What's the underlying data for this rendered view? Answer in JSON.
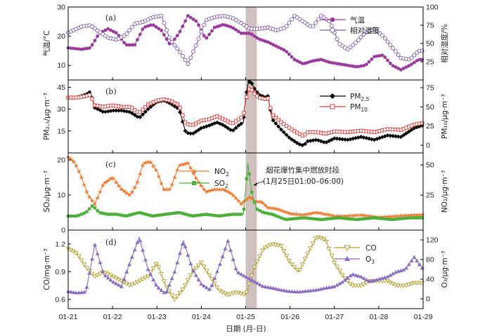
{
  "chart_data": [
    {
      "panel": "(a)",
      "type": "line",
      "x_day_range": [
        21,
        29
      ],
      "left_axis": {
        "label": "气温/°C",
        "range": [
          5,
          30
        ],
        "ticks": [
          "10",
          "20",
          "30"
        ]
      },
      "right_axis": {
        "label": "相对湿度/%",
        "range": [
          0,
          100
        ],
        "ticks": [
          "25",
          "50",
          "75",
          "100"
        ]
      },
      "series": [
        {
          "name": "气温",
          "axis": "left",
          "color": "#9b3a9b",
          "marker": "filled-circle",
          "x": [
            21.0,
            21.3,
            21.5,
            21.7,
            21.9,
            22.1,
            22.3,
            22.5,
            22.7,
            22.9,
            23.1,
            23.3,
            23.5,
            23.7,
            23.9,
            24.1,
            24.3,
            24.5,
            24.7,
            24.9,
            25.1,
            25.3,
            25.5,
            25.7,
            25.9,
            26.1,
            26.3,
            26.5,
            26.7,
            26.9,
            27.1,
            27.3,
            27.5,
            27.7,
            27.9,
            28.1,
            28.3,
            28.5,
            28.7,
            28.9,
            29.0
          ],
          "y": [
            16,
            15.5,
            16,
            21,
            22.5,
            21,
            17,
            17,
            23,
            24,
            22,
            17,
            21,
            27,
            25,
            19,
            23,
            24,
            23,
            21,
            21,
            19,
            18,
            16.5,
            15,
            12,
            10.5,
            11.5,
            12,
            11,
            10.5,
            10,
            9.5,
            10,
            13,
            13.5,
            10,
            8.5,
            10,
            12,
            12
          ]
        },
        {
          "name": "相对湿度",
          "axis": "right",
          "color": "#7e5aa8",
          "marker": "open-circle",
          "x": [
            21.0,
            21.3,
            21.5,
            21.7,
            21.9,
            22.1,
            22.3,
            22.5,
            22.7,
            22.9,
            23.1,
            23.3,
            23.5,
            23.7,
            23.9,
            24.1,
            24.3,
            24.5,
            24.7,
            24.9,
            25.1,
            25.3,
            25.5,
            25.7,
            25.9,
            26.1,
            26.3,
            26.5,
            26.7,
            26.9,
            27.1,
            27.3,
            27.5,
            27.7,
            27.9,
            28.1,
            28.3,
            28.5,
            28.7,
            28.9,
            29.0
          ],
          "y": [
            65,
            73,
            75,
            66,
            58,
            55,
            62,
            77,
            80,
            86,
            88,
            55,
            40,
            22,
            50,
            82,
            86,
            88,
            85,
            78,
            70,
            70,
            72,
            68,
            72,
            88,
            80,
            72,
            88,
            80,
            50,
            42,
            52,
            65,
            70,
            60,
            45,
            30,
            28,
            40,
            40
          ]
        }
      ]
    },
    {
      "panel": "(b)",
      "type": "line",
      "x_day_range": [
        21,
        29
      ],
      "left_axis": {
        "label": "PM₂.₅/μg·m⁻³",
        "range": [
          0,
          50
        ],
        "ticks": [
          "15",
          "30",
          "45"
        ]
      },
      "right_axis": {
        "label": "PM₁₀/μg·m⁻³",
        "range": [
          -10,
          85
        ],
        "ticks": [
          "0",
          "25",
          "50",
          "75"
        ]
      },
      "series": [
        {
          "name": "PM2.5",
          "axis": "left",
          "color": "#000000",
          "marker": "filled-diamond",
          "x": [
            21.0,
            21.2,
            21.3,
            21.4,
            21.5,
            21.6,
            21.8,
            22.0,
            22.2,
            22.4,
            22.6,
            22.8,
            23.0,
            23.15,
            23.3,
            23.5,
            23.65,
            23.8,
            24.0,
            24.2,
            24.35,
            24.5,
            24.7,
            24.85,
            24.95,
            25.0,
            25.05,
            25.1,
            25.2,
            25.3,
            25.45,
            25.5,
            25.6,
            25.8,
            26.0,
            26.2,
            26.3,
            26.4,
            26.6,
            26.8,
            27.0,
            27.3,
            27.6,
            27.9,
            28.2,
            28.5,
            28.8,
            29.0
          ],
          "y": [
            38,
            38,
            39,
            40,
            42,
            31,
            28,
            29,
            29,
            28,
            24,
            30,
            35,
            36,
            34,
            30,
            14,
            13,
            17,
            19,
            21,
            19,
            15,
            19,
            21,
            38,
            47,
            50,
            44,
            40,
            38,
            39,
            23,
            16,
            10,
            6,
            5,
            8,
            9,
            7,
            10,
            9,
            11,
            9,
            12,
            11,
            17,
            19
          ]
        },
        {
          "name": "PM10",
          "axis": "right",
          "color": "#e03c3c",
          "marker": "open-square",
          "x": [
            21.0,
            21.2,
            21.3,
            21.4,
            21.5,
            21.6,
            21.8,
            22.0,
            22.2,
            22.4,
            22.6,
            22.8,
            23.0,
            23.15,
            23.3,
            23.5,
            23.65,
            23.8,
            24.0,
            24.2,
            24.35,
            24.5,
            24.7,
            24.85,
            24.95,
            25.0,
            25.05,
            25.1,
            25.2,
            25.3,
            25.45,
            25.5,
            25.6,
            25.8,
            26.0,
            26.2,
            26.3,
            26.4,
            26.6,
            26.8,
            27.0,
            27.3,
            27.6,
            27.9,
            28.2,
            28.5,
            28.8,
            29.0
          ],
          "y": [
            62,
            62,
            63,
            64,
            66,
            52,
            50,
            52,
            50,
            50,
            42,
            53,
            58,
            60,
            58,
            52,
            28,
            26,
            32,
            34,
            38,
            34,
            28,
            34,
            38,
            58,
            70,
            75,
            67,
            62,
            60,
            61,
            40,
            30,
            22,
            15,
            12,
            17,
            17,
            15,
            18,
            17,
            19,
            17,
            21,
            20,
            27,
            29
          ]
        }
      ]
    },
    {
      "panel": "(c)",
      "type": "line",
      "x_day_range": [
        21,
        29
      ],
      "left_axis": {
        "label": "SO₂/μg·m⁻³",
        "range": [
          0,
          22
        ],
        "ticks": [
          "0",
          "10",
          "20"
        ]
      },
      "right_axis": {
        "label": "NO₂/μg·m⁻³",
        "range": [
          -4,
          60
        ],
        "ticks": [
          "25",
          "50"
        ]
      },
      "annotation": {
        "text_line1": "烟花爆竹集中燃放时段",
        "text_line2": "(1月25日01:00–06:00)"
      },
      "series": [
        {
          "name": "NO2",
          "axis": "right",
          "color": "#ee7a30",
          "marker": "star",
          "x": [
            21.0,
            21.15,
            21.3,
            21.45,
            21.6,
            21.8,
            22.0,
            22.2,
            22.4,
            22.55,
            22.7,
            22.85,
            23.0,
            23.15,
            23.3,
            23.5,
            23.7,
            23.9,
            24.1,
            24.3,
            24.5,
            24.7,
            24.9,
            25.1,
            25.2,
            25.35,
            25.5,
            25.7,
            26.0,
            26.3,
            26.6,
            27.0,
            27.3,
            27.6,
            28.0,
            28.4,
            28.8,
            29.0
          ],
          "y": [
            57,
            52,
            40,
            25,
            18,
            35,
            40,
            30,
            25,
            35,
            52,
            53,
            45,
            30,
            30,
            50,
            52,
            38,
            28,
            30,
            30,
            26,
            18,
            24,
            20,
            20,
            15,
            14,
            10,
            9,
            11,
            8,
            8,
            9,
            7,
            8,
            9,
            9
          ]
        },
        {
          "name": "SO2",
          "axis": "left",
          "color": "#4fae3c",
          "marker": "filled-square",
          "x": [
            21.0,
            21.2,
            21.4,
            21.55,
            21.7,
            21.9,
            22.1,
            22.3,
            22.6,
            22.9,
            23.2,
            23.5,
            23.8,
            24.1,
            24.4,
            24.7,
            24.95,
            25.05,
            25.1,
            25.15,
            25.25,
            25.4,
            25.6,
            25.9,
            26.3,
            26.7,
            27.1,
            27.5,
            27.9,
            28.3,
            28.7,
            29.0
          ],
          "y": [
            4,
            4,
            5,
            7,
            5,
            4.5,
            4.5,
            4,
            5,
            4,
            4.5,
            5,
            4,
            4.5,
            4,
            4.5,
            4.5,
            19,
            14,
            10,
            6,
            5,
            4.5,
            3,
            3.5,
            3,
            3.5,
            3,
            3.5,
            3,
            3.5,
            3.5
          ]
        }
      ]
    },
    {
      "panel": "(d)",
      "type": "line",
      "x_day_range": [
        21,
        29
      ],
      "left_axis": {
        "label": "CO/mg·m⁻³",
        "range": [
          0.5,
          1.35
        ],
        "ticks": [
          "0.6",
          "0.9",
          "1.2"
        ]
      },
      "right_axis": {
        "label": "O₃/μg·m⁻³",
        "range": [
          -20,
          140
        ],
        "ticks": [
          "0",
          "40",
          "80",
          "120"
        ]
      },
      "series": [
        {
          "name": "CO",
          "axis": "left",
          "color": "#b0a030",
          "marker": "open-triangle-down",
          "x": [
            21.0,
            21.2,
            21.4,
            21.6,
            21.8,
            22.0,
            22.2,
            22.4,
            22.6,
            22.8,
            23.0,
            23.2,
            23.4,
            23.6,
            23.8,
            24.0,
            24.2,
            24.4,
            24.6,
            24.8,
            25.0,
            25.2,
            25.4,
            25.6,
            25.8,
            26.0,
            26.2,
            26.4,
            26.6,
            26.8,
            27.0,
            27.2,
            27.4,
            27.6,
            27.8,
            28.0,
            28.2,
            28.4,
            28.6,
            28.8,
            29.0
          ],
          "y": [
            1.15,
            1.1,
            0.95,
            0.85,
            0.9,
            0.85,
            0.8,
            0.75,
            0.8,
            0.85,
            1.0,
            0.75,
            0.6,
            0.72,
            0.9,
            1.0,
            0.85,
            0.7,
            0.65,
            0.68,
            0.65,
            0.95,
            1.15,
            1.2,
            1.18,
            1.0,
            0.9,
            1.1,
            1.28,
            1.25,
            1.0,
            0.85,
            0.75,
            0.75,
            0.8,
            0.8,
            0.8,
            0.75,
            0.75,
            0.78,
            0.78
          ]
        },
        {
          "name": "O3",
          "axis": "right",
          "color": "#8a6cc0",
          "marker": "filled-triangle",
          "x": [
            21.0,
            21.2,
            21.4,
            21.6,
            21.8,
            22.0,
            22.2,
            22.4,
            22.6,
            22.8,
            23.0,
            23.2,
            23.4,
            23.6,
            23.8,
            24.0,
            24.2,
            24.4,
            24.6,
            24.8,
            25.0,
            25.2,
            25.4,
            25.6,
            25.8,
            26.0,
            26.2,
            26.4,
            26.6,
            26.8,
            27.0,
            27.2,
            27.4,
            27.6,
            27.8,
            28.0,
            28.2,
            28.4,
            28.6,
            28.8,
            29.0
          ],
          "y": [
            15,
            12,
            14,
            110,
            50,
            35,
            25,
            75,
            125,
            60,
            25,
            10,
            55,
            118,
            60,
            30,
            18,
            65,
            118,
            55,
            45,
            35,
            25,
            22,
            18,
            15,
            14,
            16,
            18,
            22,
            25,
            35,
            50,
            45,
            35,
            40,
            45,
            55,
            60,
            85,
            60
          ]
        }
      ]
    }
  ],
  "x_ticks": [
    "01-21",
    "01-22",
    "01-23",
    "01-24",
    "01-25",
    "01-26",
    "01-27",
    "01-28",
    "01-29"
  ],
  "x_label": "日期 (月-日)",
  "highlight_day_range": [
    25.0,
    25.25
  ],
  "legend_labels": {
    "temp": "气温",
    "rh": "相对湿度",
    "pm25": "PM",
    "pm25_sub": "2.5",
    "pm10": "PM",
    "pm10_sub": "10",
    "no2": "NO",
    "no2_sub": "2",
    "so2": "SO",
    "so2_sub": "2",
    "co": "CO",
    "o3": "O",
    "o3_sub": "3"
  }
}
